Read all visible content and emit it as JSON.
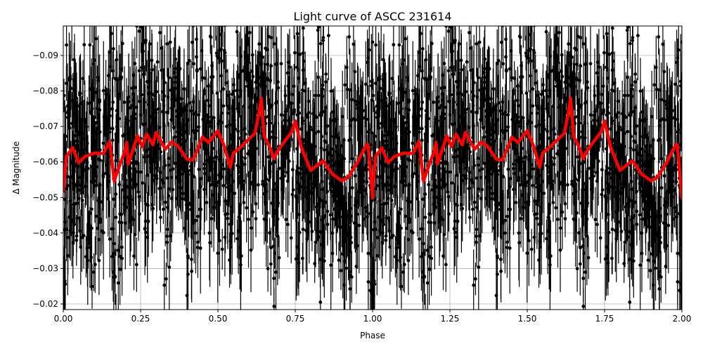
{
  "chart_data": {
    "type": "scatter",
    "title": "Light curve of ASCC 231614",
    "xlabel": "Phase",
    "ylabel": "Δ Magnitude",
    "xlim": [
      0.0,
      2.0
    ],
    "ylim": [
      -0.018,
      -0.098
    ],
    "y_inverted": true,
    "grid": true,
    "x_ticks": [
      "0.00",
      "0.25",
      "0.50",
      "0.75",
      "1.00",
      "1.25",
      "1.50",
      "1.75",
      "2.00"
    ],
    "y_ticks": [
      "−0.09",
      "−0.08",
      "−0.07",
      "−0.06",
      "−0.05",
      "−0.04",
      "−0.03",
      "−0.02"
    ],
    "series": [
      {
        "name": "observations",
        "kind": "errorbar-points",
        "color": "#000000",
        "description": "Dense black points with vertical error bars spanning roughly -0.02 to -0.098, folded over two phase cycles"
      },
      {
        "name": "binned model",
        "kind": "line",
        "color": "#ff0000",
        "x": [
          0.0,
          0.01,
          0.03,
          0.05,
          0.07,
          0.1,
          0.13,
          0.15,
          0.165,
          0.17,
          0.2,
          0.205,
          0.21,
          0.24,
          0.255,
          0.27,
          0.29,
          0.3,
          0.33,
          0.35,
          0.37,
          0.4,
          0.42,
          0.45,
          0.47,
          0.5,
          0.52,
          0.54,
          0.55,
          0.58,
          0.59,
          0.62,
          0.635,
          0.64,
          0.65,
          0.67,
          0.68,
          0.7,
          0.74,
          0.75,
          0.77,
          0.79,
          0.8,
          0.83,
          0.84,
          0.87,
          0.9,
          0.92,
          0.95,
          0.97,
          0.98,
          0.985,
          1.0
        ],
        "values": [
          -0.052,
          -0.0615,
          -0.064,
          -0.0598,
          -0.0615,
          -0.0625,
          -0.0624,
          -0.0658,
          -0.0545,
          -0.056,
          -0.0633,
          -0.0655,
          -0.0594,
          -0.0674,
          -0.0643,
          -0.0678,
          -0.0648,
          -0.0683,
          -0.0636,
          -0.0656,
          -0.0646,
          -0.0608,
          -0.0605,
          -0.067,
          -0.0655,
          -0.0688,
          -0.0646,
          -0.0585,
          -0.0625,
          -0.0647,
          -0.0656,
          -0.0681,
          -0.075,
          -0.078,
          -0.0672,
          -0.0638,
          -0.0609,
          -0.064,
          -0.0686,
          -0.0716,
          -0.064,
          -0.0597,
          -0.0576,
          -0.0597,
          -0.0603,
          -0.0566,
          -0.0547,
          -0.0556,
          -0.0597,
          -0.0632,
          -0.0648,
          -0.0649,
          -0.0498
        ]
      }
    ]
  },
  "legend": null
}
